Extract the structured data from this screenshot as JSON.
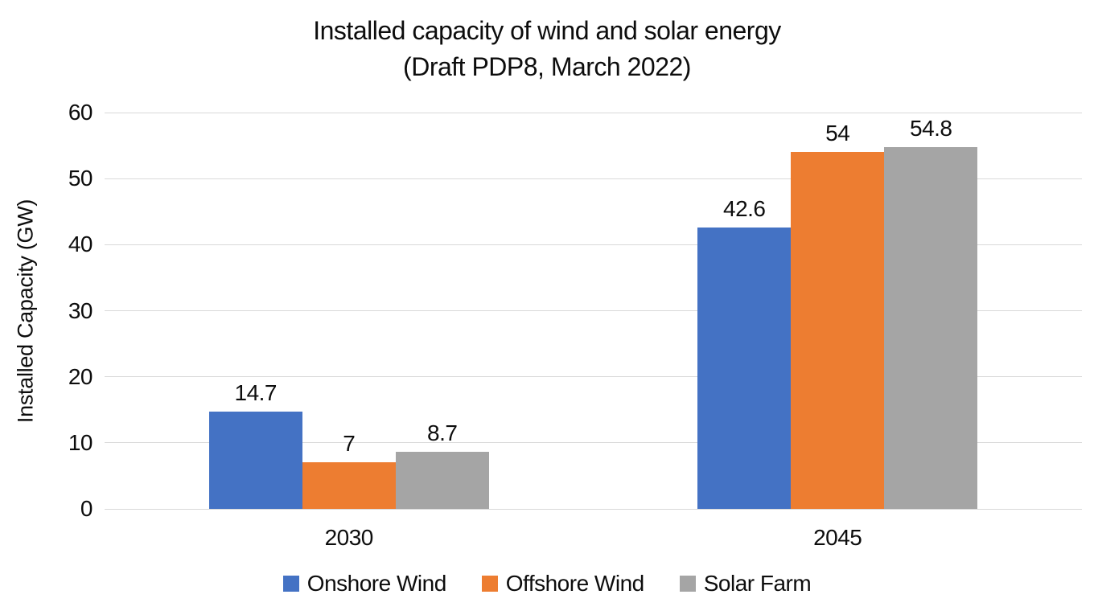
{
  "title": {
    "line1": "Installed capacity of wind and solar energy",
    "line2": "(Draft PDP8, March 2022)"
  },
  "chart_data": {
    "type": "bar",
    "categories": [
      "2030",
      "2045"
    ],
    "series": [
      {
        "name": "Onshore Wind",
        "color": "#4472C4",
        "values": [
          14.7,
          42.6
        ],
        "labels": [
          "14.7",
          "42.6"
        ]
      },
      {
        "name": "Offshore Wind",
        "color": "#ED7D31",
        "values": [
          7,
          54
        ],
        "labels": [
          "7",
          "54"
        ]
      },
      {
        "name": "Solar Farm",
        "color": "#A5A5A5",
        "values": [
          8.7,
          54.8
        ],
        "labels": [
          "8.7",
          "54.8"
        ]
      }
    ],
    "ylabel": "Installed Capacity (GW)",
    "ylim": [
      0,
      60
    ],
    "yticks": [
      0,
      10,
      20,
      30,
      40,
      50,
      60
    ],
    "grid": true,
    "gridline_color": "#d9d9d9",
    "legend_position": "bottom",
    "text_color": "#0d0d0d",
    "background_color": "#ffffff"
  }
}
